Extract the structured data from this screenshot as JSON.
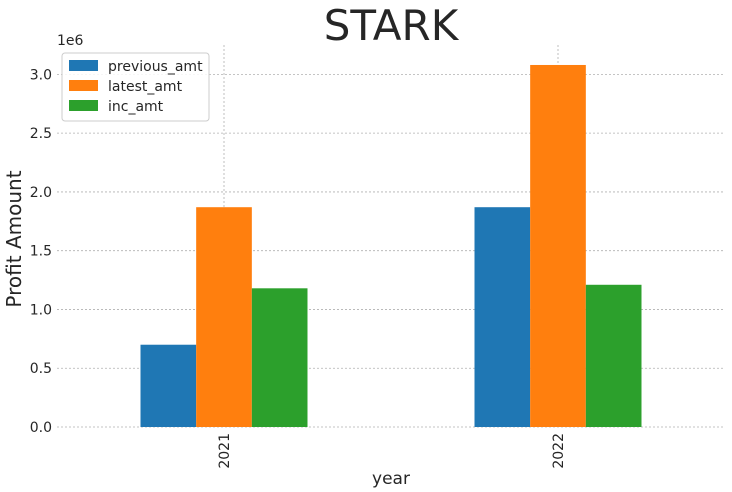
{
  "chart_data": {
    "type": "bar",
    "title": "STARK",
    "xlabel": "year",
    "ylabel": "Profit Amount",
    "offset_label": "1e6",
    "categories": [
      "2021",
      "2022"
    ],
    "series": [
      {
        "name": "previous_amt",
        "color": "#1f77b4",
        "values": [
          700000,
          1870000
        ]
      },
      {
        "name": "latest_amt",
        "color": "#ff7f0e",
        "values": [
          1870000,
          3080000
        ]
      },
      {
        "name": "inc_amt",
        "color": "#2ca02c",
        "values": [
          1180000,
          1210000
        ]
      }
    ],
    "ylim": [
      0,
      3250000
    ],
    "yticks": [
      0,
      500000,
      1000000,
      1500000,
      2000000,
      2500000,
      3000000
    ],
    "ytick_labels": [
      "0.0",
      "0.5",
      "1.0",
      "1.5",
      "2.0",
      "2.5",
      "3.0"
    ],
    "grid": true,
    "legend_position": "top-left",
    "xtick_rotation": "vertical"
  }
}
